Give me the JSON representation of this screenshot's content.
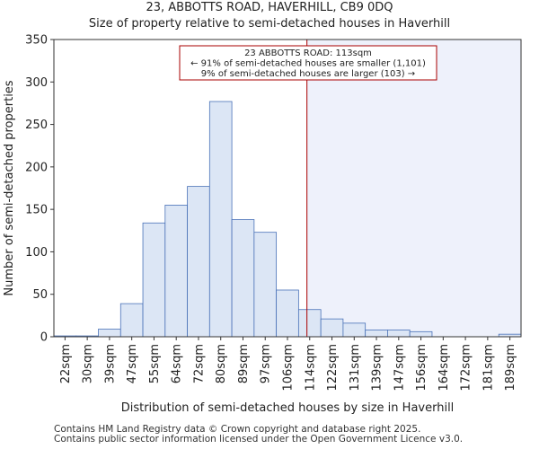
{
  "title": "23, ABBOTTS ROAD, HAVERHILL, CB9 0DQ",
  "subtitle": "Size of property relative to semi-detached houses in Haverhill",
  "footer": {
    "line1": "Contains HM Land Registry data © Crown copyright and database right 2025.",
    "line2": "Contains public sector information licensed under the Open Government Licence v3.0."
  },
  "colors": {
    "bar_fill": "#dce6f5",
    "bar_stroke": "#4a72b8",
    "highlight_fill": "#eef1fb",
    "marker": "#aa0000",
    "annotation_border": "#aa0000"
  },
  "chart_data": {
    "type": "bar",
    "title": "23, ABBOTTS ROAD, HAVERHILL, CB9 0DQ",
    "subtitle": "Size of property relative to semi-detached houses in Haverhill",
    "xlabel": "Distribution of semi-detached houses by size in Haverhill",
    "ylabel": "Number of semi-detached properties",
    "categories": [
      "22sqm",
      "30sqm",
      "39sqm",
      "47sqm",
      "55sqm",
      "64sqm",
      "72sqm",
      "80sqm",
      "89sqm",
      "97sqm",
      "106sqm",
      "114sqm",
      "122sqm",
      "131sqm",
      "139sqm",
      "147sqm",
      "156sqm",
      "164sqm",
      "172sqm",
      "181sqm",
      "189sqm"
    ],
    "values": [
      1,
      1,
      9,
      39,
      134,
      155,
      177,
      277,
      138,
      123,
      55,
      32,
      21,
      16,
      8,
      8,
      6,
      0,
      0,
      0,
      3
    ],
    "ylim": [
      0,
      350
    ],
    "yticks": [
      0,
      50,
      100,
      150,
      200,
      250,
      300,
      350
    ],
    "property_size": 113,
    "property_size_label": "113sqm",
    "annotation": {
      "line1": "23 ABBOTTS ROAD: 113sqm",
      "line2": "← 91% of semi-detached houses are smaller (1,101)",
      "line3": "9% of semi-detached houses are larger (103) →"
    }
  }
}
